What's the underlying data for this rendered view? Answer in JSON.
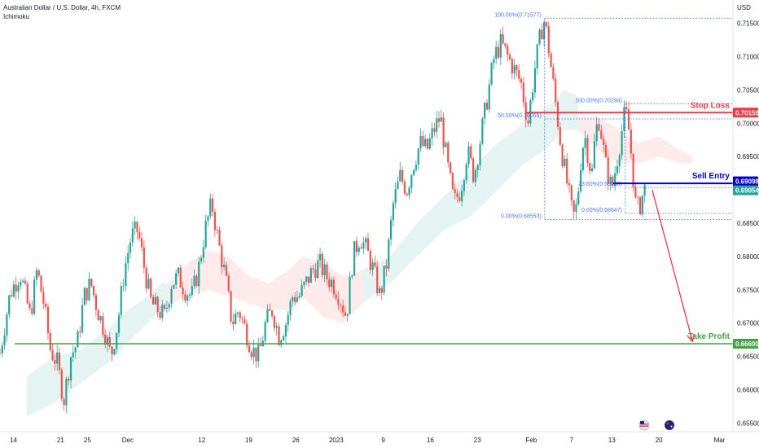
{
  "header": {
    "title": "Australian Dollar / U.S. Dollar, 4h, FXCM",
    "indicator": "Ichimoku"
  },
  "chart_data": {
    "type": "candlestick",
    "currency_label": "USD",
    "y_ticks": [
      "0.71500",
      "0.71000",
      "0.70500",
      "0.70000",
      "0.69500",
      "0.69000",
      "0.68500",
      "0.68000",
      "0.67500",
      "0.67000",
      "0.66500",
      "0.66000",
      "0.65500"
    ],
    "y_tick_values": [
      0.715,
      0.71,
      0.705,
      0.7,
      0.695,
      0.69,
      0.685,
      0.68,
      0.675,
      0.67,
      0.665,
      0.66,
      0.655
    ],
    "ylim": [
      0.6537,
      0.7185
    ],
    "x_ticks": [
      {
        "label": "14",
        "t": 4
      },
      {
        "label": "21",
        "t": 11
      },
      {
        "label": "25",
        "t": 15
      },
      {
        "label": "Dec",
        "t": 21
      },
      {
        "label": "12",
        "t": 32
      },
      {
        "label": "19",
        "t": 39
      },
      {
        "label": "26",
        "t": 46
      },
      {
        "label": "2023",
        "t": 52
      },
      {
        "label": "9",
        "t": 59
      },
      {
        "label": "16",
        "t": 66
      },
      {
        "label": "23",
        "t": 73
      },
      {
        "label": "Feb",
        "t": 81
      },
      {
        "label": "7",
        "t": 87
      },
      {
        "label": "13",
        "t": 93
      },
      {
        "label": "20",
        "t": 100
      },
      {
        "label": "Mar",
        "t": 109
      }
    ],
    "xlim": [
      2,
      111
    ],
    "price_path": [
      [
        2,
        0.6655
      ],
      [
        3.5,
        0.6745
      ],
      [
        5,
        0.6775
      ],
      [
        6.5,
        0.671
      ],
      [
        7.5,
        0.678
      ],
      [
        8.5,
        0.673
      ],
      [
        9.5,
        0.666
      ],
      [
        10.5,
        0.664
      ],
      [
        11.5,
        0.6585
      ],
      [
        12.5,
        0.665
      ],
      [
        13.5,
        0.667
      ],
      [
        14.5,
        0.674
      ],
      [
        15.5,
        0.676
      ],
      [
        16.5,
        0.672
      ],
      [
        17.5,
        0.669
      ],
      [
        18.5,
        0.665
      ],
      [
        19.5,
        0.67
      ],
      [
        20.5,
        0.678
      ],
      [
        21.5,
        0.683
      ],
      [
        22.5,
        0.684
      ],
      [
        23.5,
        0.678
      ],
      [
        24.5,
        0.673
      ],
      [
        25.5,
        0.672
      ],
      [
        26.5,
        0.671
      ],
      [
        27.5,
        0.676
      ],
      [
        28.5,
        0.677
      ],
      [
        29.5,
        0.675
      ],
      [
        30.5,
        0.674
      ],
      [
        31.5,
        0.678
      ],
      [
        32.5,
        0.684
      ],
      [
        33.5,
        0.688
      ],
      [
        34.5,
        0.682
      ],
      [
        35.5,
        0.677
      ],
      [
        36.5,
        0.67
      ],
      [
        37.5,
        0.672
      ],
      [
        38.5,
        0.669
      ],
      [
        39.5,
        0.666
      ],
      [
        40.5,
        0.665
      ],
      [
        41.5,
        0.67
      ],
      [
        42.5,
        0.672
      ],
      [
        43.5,
        0.668
      ],
      [
        44.5,
        0.67
      ],
      [
        45.5,
        0.674
      ],
      [
        46.5,
        0.674
      ],
      [
        47.5,
        0.676
      ],
      [
        48.5,
        0.678
      ],
      [
        49.5,
        0.679
      ],
      [
        50.5,
        0.677
      ],
      [
        51.5,
        0.676
      ],
      [
        52.5,
        0.674
      ],
      [
        53.5,
        0.671
      ],
      [
        54.5,
        0.68
      ],
      [
        55.5,
        0.683
      ],
      [
        56.5,
        0.681
      ],
      [
        57.5,
        0.678
      ],
      [
        58.5,
        0.674
      ],
      [
        59.5,
        0.679
      ],
      [
        60.5,
        0.688
      ],
      [
        61.5,
        0.692
      ],
      [
        62.5,
        0.69
      ],
      [
        63.5,
        0.694
      ],
      [
        64.5,
        0.697
      ],
      [
        65.5,
        0.696
      ],
      [
        66.5,
        0.699
      ],
      [
        67.5,
        0.701
      ],
      [
        68.5,
        0.694
      ],
      [
        69.5,
        0.688
      ],
      [
        70.5,
        0.69
      ],
      [
        71.5,
        0.696
      ],
      [
        72.5,
        0.692
      ],
      [
        73.5,
        0.698
      ],
      [
        74.5,
        0.704
      ],
      [
        75.5,
        0.71
      ],
      [
        76.5,
        0.712
      ],
      [
        77.5,
        0.71
      ],
      [
        78.5,
        0.708
      ],
      [
        79.5,
        0.706
      ],
      [
        80.5,
        0.7
      ],
      [
        81.5,
        0.708
      ],
      [
        82.5,
        0.714
      ],
      [
        83.0,
        0.7155
      ],
      [
        83.5,
        0.712
      ],
      [
        84.5,
        0.704
      ],
      [
        85.5,
        0.696
      ],
      [
        86.5,
        0.69
      ],
      [
        87.0,
        0.687
      ],
      [
        87.5,
        0.6857
      ],
      [
        88.0,
        0.69
      ],
      [
        88.5,
        0.696
      ],
      [
        89.0,
        0.698
      ],
      [
        89.5,
        0.695
      ],
      [
        90.0,
        0.692
      ],
      [
        90.5,
        0.698
      ],
      [
        91.0,
        0.701
      ],
      [
        91.5,
        0.698
      ],
      [
        92.0,
        0.694
      ],
      [
        92.5,
        0.692
      ],
      [
        93.0,
        0.69
      ],
      [
        93.5,
        0.693
      ],
      [
        94.0,
        0.696
      ],
      [
        94.5,
        0.699
      ],
      [
        95.0,
        0.702
      ],
      [
        95.5,
        0.699
      ],
      [
        96.0,
        0.694
      ],
      [
        96.5,
        0.688
      ],
      [
        97.0,
        0.687
      ],
      [
        97.5,
        0.689
      ],
      [
        98.0,
        0.6905
      ]
    ],
    "cloud_segments": [
      {
        "color": "#26a69a",
        "points": [
          [
            6,
            0.662
          ],
          [
            10,
            0.665
          ],
          [
            14,
            0.666
          ],
          [
            18,
            0.669
          ],
          [
            21,
            0.672
          ],
          [
            24,
            0.674
          ],
          [
            26,
            0.676
          ],
          [
            27,
            0.676
          ]
        ],
        "lower": [
          [
            6,
            0.656
          ],
          [
            10,
            0.658
          ],
          [
            14,
            0.661
          ],
          [
            18,
            0.664
          ],
          [
            21,
            0.667
          ],
          [
            24,
            0.67
          ],
          [
            26,
            0.672
          ],
          [
            27,
            0.673
          ]
        ]
      },
      {
        "color": "#ef5350",
        "points": [
          [
            27,
            0.676
          ],
          [
            30,
            0.679
          ],
          [
            33,
            0.681
          ],
          [
            36,
            0.68
          ],
          [
            39,
            0.677
          ],
          [
            42,
            0.676
          ],
          [
            45,
            0.678
          ],
          [
            47,
            0.68
          ]
        ],
        "lower": [
          [
            27,
            0.673
          ],
          [
            30,
            0.674
          ],
          [
            33,
            0.675
          ],
          [
            36,
            0.674
          ],
          [
            39,
            0.673
          ],
          [
            42,
            0.672
          ],
          [
            45,
            0.672
          ],
          [
            47,
            0.674
          ]
        ]
      },
      {
        "color": "#ef5350",
        "points": [
          [
            47,
            0.68
          ],
          [
            50,
            0.679
          ],
          [
            53,
            0.677
          ],
          [
            56,
            0.678
          ]
        ],
        "lower": [
          [
            47,
            0.674
          ],
          [
            50,
            0.671
          ],
          [
            53,
            0.67
          ],
          [
            56,
            0.673
          ]
        ]
      },
      {
        "color": "#26a69a",
        "points": [
          [
            56,
            0.678
          ],
          [
            60,
            0.68
          ],
          [
            64,
            0.685
          ],
          [
            68,
            0.689
          ],
          [
            72,
            0.693
          ],
          [
            76,
            0.697
          ],
          [
            80,
            0.7
          ],
          [
            83,
            0.702
          ],
          [
            86,
            0.705
          ],
          [
            88,
            0.704
          ]
        ],
        "lower": [
          [
            56,
            0.673
          ],
          [
            60,
            0.676
          ],
          [
            64,
            0.68
          ],
          [
            68,
            0.684
          ],
          [
            72,
            0.686
          ],
          [
            76,
            0.69
          ],
          [
            80,
            0.694
          ],
          [
            83,
            0.696
          ],
          [
            86,
            0.699
          ],
          [
            88,
            0.699
          ]
        ]
      },
      {
        "color": "#ef5350",
        "points": [
          [
            88,
            0.701
          ],
          [
            91,
            0.701
          ],
          [
            94,
            0.699
          ],
          [
            97,
            0.697
          ],
          [
            100,
            0.698
          ],
          [
            103,
            0.696
          ],
          [
            105,
            0.695
          ]
        ],
        "lower": [
          [
            88,
            0.699
          ],
          [
            91,
            0.696
          ],
          [
            94,
            0.694
          ],
          [
            97,
            0.694
          ],
          [
            100,
            0.695
          ],
          [
            103,
            0.694
          ],
          [
            105,
            0.694
          ]
        ]
      }
    ],
    "levels": {
      "stop_loss": {
        "label": "Stop Loss",
        "price_label": "0.70159",
        "value": 0.70159,
        "color": "#f23645"
      },
      "sell_entry": {
        "label": "Sell Entry",
        "price_label": "0.69098",
        "value": 0.69098,
        "color": "#0000cc"
      },
      "current": {
        "price_label": "0.69054",
        "value": 0.69054,
        "color": "#26a69a"
      },
      "take_profit": {
        "label": "Take Profit",
        "price_label": "0.66690",
        "value": 0.6669,
        "color": "#43a047"
      }
    },
    "fib_retracements": [
      {
        "x_from": 83,
        "x_to": 111,
        "top": 0.71577,
        "bottom": 0.68553,
        "labels": [
          {
            "text": "100.00%(0.71577)",
            "value": 0.71577
          },
          {
            "text": "50.00%(0.70065)",
            "value": 0.70065
          },
          {
            "text": "0.00%(0.68553)",
            "value": 0.68553
          }
        ]
      },
      {
        "x_from": 95,
        "x_to": 111,
        "top": 0.70294,
        "bottom": 0.68647,
        "labels": [
          {
            "text": "100.00%(0.70294)",
            "value": 0.70294
          },
          {
            "text": "23.60%(0.69036)",
            "value": 0.69036
          },
          {
            "text": "0.00%(0.68647)",
            "value": 0.68647
          }
        ]
      }
    ],
    "arrow": {
      "from": [
        99,
        0.69
      ],
      "to": [
        105,
        0.6672
      ],
      "color": "#f23645"
    }
  }
}
